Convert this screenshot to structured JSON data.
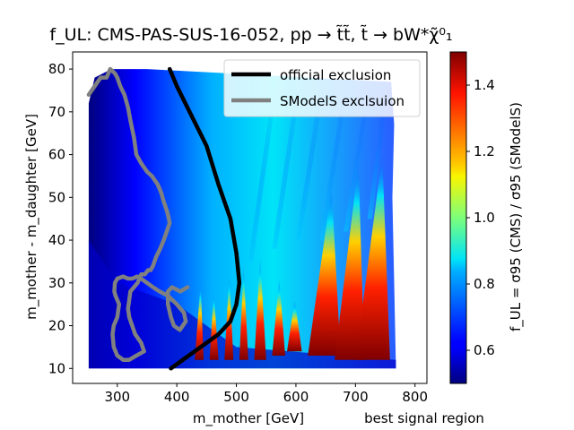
{
  "chart_data": {
    "type": "heatmap",
    "title": "f_UL: CMS-PAS-SUS-16-052, pp → t̃t̃, t̃ → bW*χ̃⁰₁",
    "xlabel": "m_mother [GeV]",
    "ylabel": "m_mother - m_daughter [GeV]",
    "xlim": [
      225,
      820
    ],
    "ylim": [
      6.5,
      84
    ],
    "xticks": [
      300,
      400,
      500,
      600,
      700,
      800
    ],
    "yticks": [
      10,
      20,
      30,
      40,
      50,
      60,
      70,
      80
    ],
    "colorbar": {
      "label": "f_UL = σ95 (CMS) / σ95 (SModelS)",
      "range": [
        0.5,
        1.5
      ],
      "ticks": [
        0.6,
        0.8,
        1.0,
        1.2,
        1.4
      ],
      "colormap": "jet"
    },
    "series": [
      {
        "name": "official exclusion",
        "color": "#000000",
        "x": [
          388,
          400,
          425,
          450,
          470,
          490,
          500,
          505,
          500,
          490,
          470,
          450,
          420,
          405,
          390
        ],
        "y": [
          80,
          76,
          69,
          62,
          53,
          45,
          37,
          30,
          25,
          21,
          18,
          16,
          13,
          11.5,
          10
        ]
      },
      {
        "name": "SModelS exclsuion",
        "color": "#808080",
        "x": [
          252,
          262,
          272,
          282,
          288,
          296,
          300,
          305,
          312,
          318,
          322,
          328,
          332,
          340,
          350,
          358,
          368,
          374,
          378,
          383,
          385,
          388,
          383,
          378,
          372,
          365,
          360,
          356,
          352,
          346,
          340,
          334,
          328,
          322,
          320,
          318,
          320,
          325,
          330,
          340,
          345,
          332,
          320,
          310,
          300,
          294,
          292,
          294,
          300,
          303,
          297,
          295,
          296,
          300,
          310,
          318,
          325,
          333,
          340,
          350,
          360,
          371,
          385,
          400,
          412,
          415,
          410,
          405,
          395,
          390,
          385,
          385,
          392,
          406,
          418
        ],
        "y": [
          74,
          76,
          78,
          78,
          80,
          79,
          78,
          76,
          74,
          71,
          68,
          64,
          60,
          58,
          56,
          55,
          53,
          51,
          49,
          47,
          46,
          44,
          42,
          40,
          38,
          36,
          34,
          33,
          33,
          32,
          32,
          30,
          29,
          28,
          26,
          24,
          22,
          20,
          18,
          16,
          14,
          13,
          12,
          12,
          13,
          15,
          18,
          20,
          22,
          25,
          27,
          28,
          30,
          31,
          31.5,
          31,
          31,
          31.5,
          31,
          30,
          29,
          28,
          27,
          25,
          23,
          21,
          20,
          19,
          20,
          22,
          25,
          28,
          29,
          28,
          29
        ]
      }
    ],
    "annotations": [
      "best signal region"
    ]
  },
  "legend": {
    "official": "official exclusion",
    "smodels": "SModelS exclsuion"
  }
}
